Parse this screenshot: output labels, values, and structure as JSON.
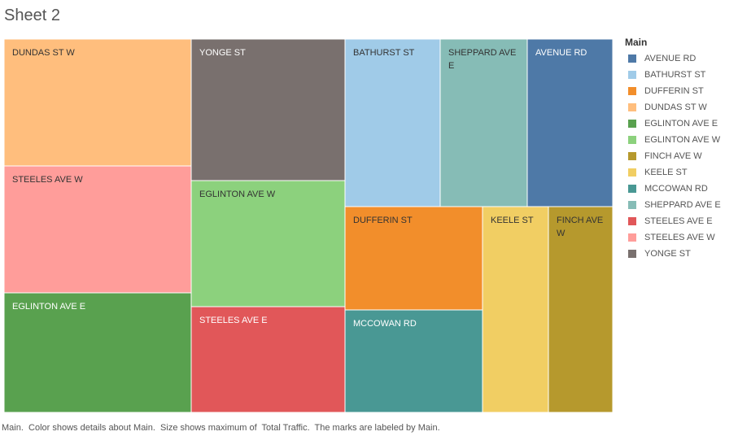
{
  "sheet": {
    "title": "Sheet 2"
  },
  "legend": {
    "title": "Main"
  },
  "caption": "Main.  Color shows details about Main.  Size shows maximum of  Total Traffic.  The marks are labeled by Main.",
  "chart_data": {
    "type": "treemap",
    "size_measure": "maximum of Total Traffic",
    "color_dimension": "Main",
    "label_dimension": "Main",
    "categories": [
      {
        "name": "AVENUE RD",
        "color": "#4e79a7"
      },
      {
        "name": "BATHURST ST",
        "color": "#a0cbe8"
      },
      {
        "name": "DUFFERIN ST",
        "color": "#f28e2b"
      },
      {
        "name": "DUNDAS ST W",
        "color": "#ffbe7d"
      },
      {
        "name": "EGLINTON AVE E",
        "color": "#59a14f"
      },
      {
        "name": "EGLINTON AVE W",
        "color": "#8cd17d"
      },
      {
        "name": "FINCH AVE W",
        "color": "#b6992d"
      },
      {
        "name": "KEELE ST",
        "color": "#f1ce63"
      },
      {
        "name": "MCCOWAN RD",
        "color": "#499894"
      },
      {
        "name": "SHEPPARD AVE E",
        "color": "#86bcb6"
      },
      {
        "name": "STEELES AVE E",
        "color": "#e15759"
      },
      {
        "name": "STEELES AVE W",
        "color": "#ff9d9a"
      },
      {
        "name": "YONGE ST",
        "color": "#79706e"
      }
    ]
  }
}
